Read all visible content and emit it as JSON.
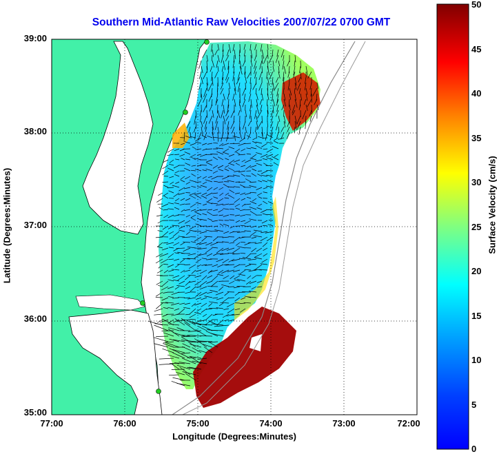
{
  "map": {
    "title": "Southern Mid-Atlantic Raw Velocities 2007/07/22 0700 GMT",
    "x_axis_label": "Longitude (Degrees:Minutes)",
    "y_axis_label": "Latitude (Degrees:Minutes)",
    "x_ticks": [
      "77:00",
      "76:00",
      "75:00",
      "74:00",
      "73:00",
      "72:00"
    ],
    "y_ticks": [
      "39:00",
      "38:00",
      "37:00",
      "36:00",
      "35:00"
    ],
    "lon_range": [
      -77,
      -72
    ],
    "lat_range": [
      35,
      39
    ],
    "grid": "dotted"
  },
  "colorbar": {
    "label": "Surface Velocity (cm/s)",
    "ticks": [
      "50",
      "45",
      "40",
      "35",
      "30",
      "25",
      "20",
      "15",
      "10",
      "5",
      "0"
    ],
    "range": [
      0,
      50
    ],
    "colormap": "jet"
  },
  "colors": {
    "land": "#42f0a8",
    "title": "#0000ee",
    "vectors": "#000000"
  },
  "icons": {
    "radar_sites": "green-circle"
  }
}
